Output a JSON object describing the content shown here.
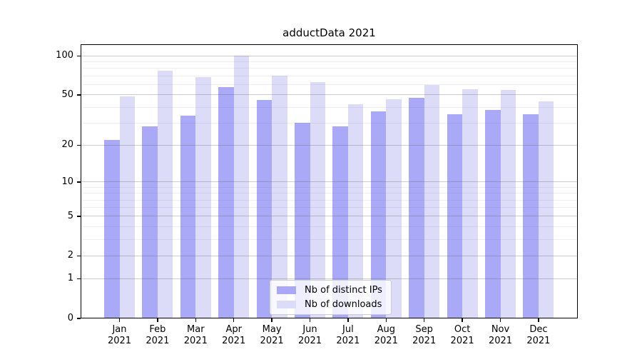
{
  "title": "adductData 2021",
  "legend": {
    "items": [
      {
        "label": "Nb of distinct IPs",
        "color": "#a9a9f7"
      },
      {
        "label": "Nb of downloads",
        "color": "#dcdcf8"
      }
    ],
    "position": "lower center"
  },
  "chart_data": {
    "type": "bar",
    "title": "adductData 2021",
    "categories": [
      {
        "month": "Jan",
        "year": "2021"
      },
      {
        "month": "Feb",
        "year": "2021"
      },
      {
        "month": "Mar",
        "year": "2021"
      },
      {
        "month": "Apr",
        "year": "2021"
      },
      {
        "month": "May",
        "year": "2021"
      },
      {
        "month": "Jun",
        "year": "2021"
      },
      {
        "month": "Jul",
        "year": "2021"
      },
      {
        "month": "Aug",
        "year": "2021"
      },
      {
        "month": "Sep",
        "year": "2021"
      },
      {
        "month": "Oct",
        "year": "2021"
      },
      {
        "month": "Nov",
        "year": "2021"
      },
      {
        "month": "Dec",
        "year": "2021"
      }
    ],
    "series": [
      {
        "name": "Nb of distinct IPs",
        "color": "#a9a9f7",
        "values": [
          22,
          28,
          34,
          57,
          45,
          30,
          28,
          37,
          47,
          35,
          38,
          35
        ]
      },
      {
        "name": "Nb of downloads",
        "color": "#dcdcf8",
        "values": [
          48,
          76,
          68,
          100,
          70,
          62,
          42,
          46,
          59,
          55,
          54,
          44
        ]
      }
    ],
    "xlabel": "",
    "ylabel": "",
    "yscale": "log1p",
    "yticks": [
      0,
      1,
      2,
      5,
      10,
      20,
      50,
      100
    ],
    "yticks_minor": [
      3,
      4,
      6,
      7,
      8,
      9,
      30,
      40,
      60,
      70,
      80,
      90
    ],
    "ylim": [
      0,
      123
    ],
    "grid": true,
    "legend_position": "lower center"
  }
}
